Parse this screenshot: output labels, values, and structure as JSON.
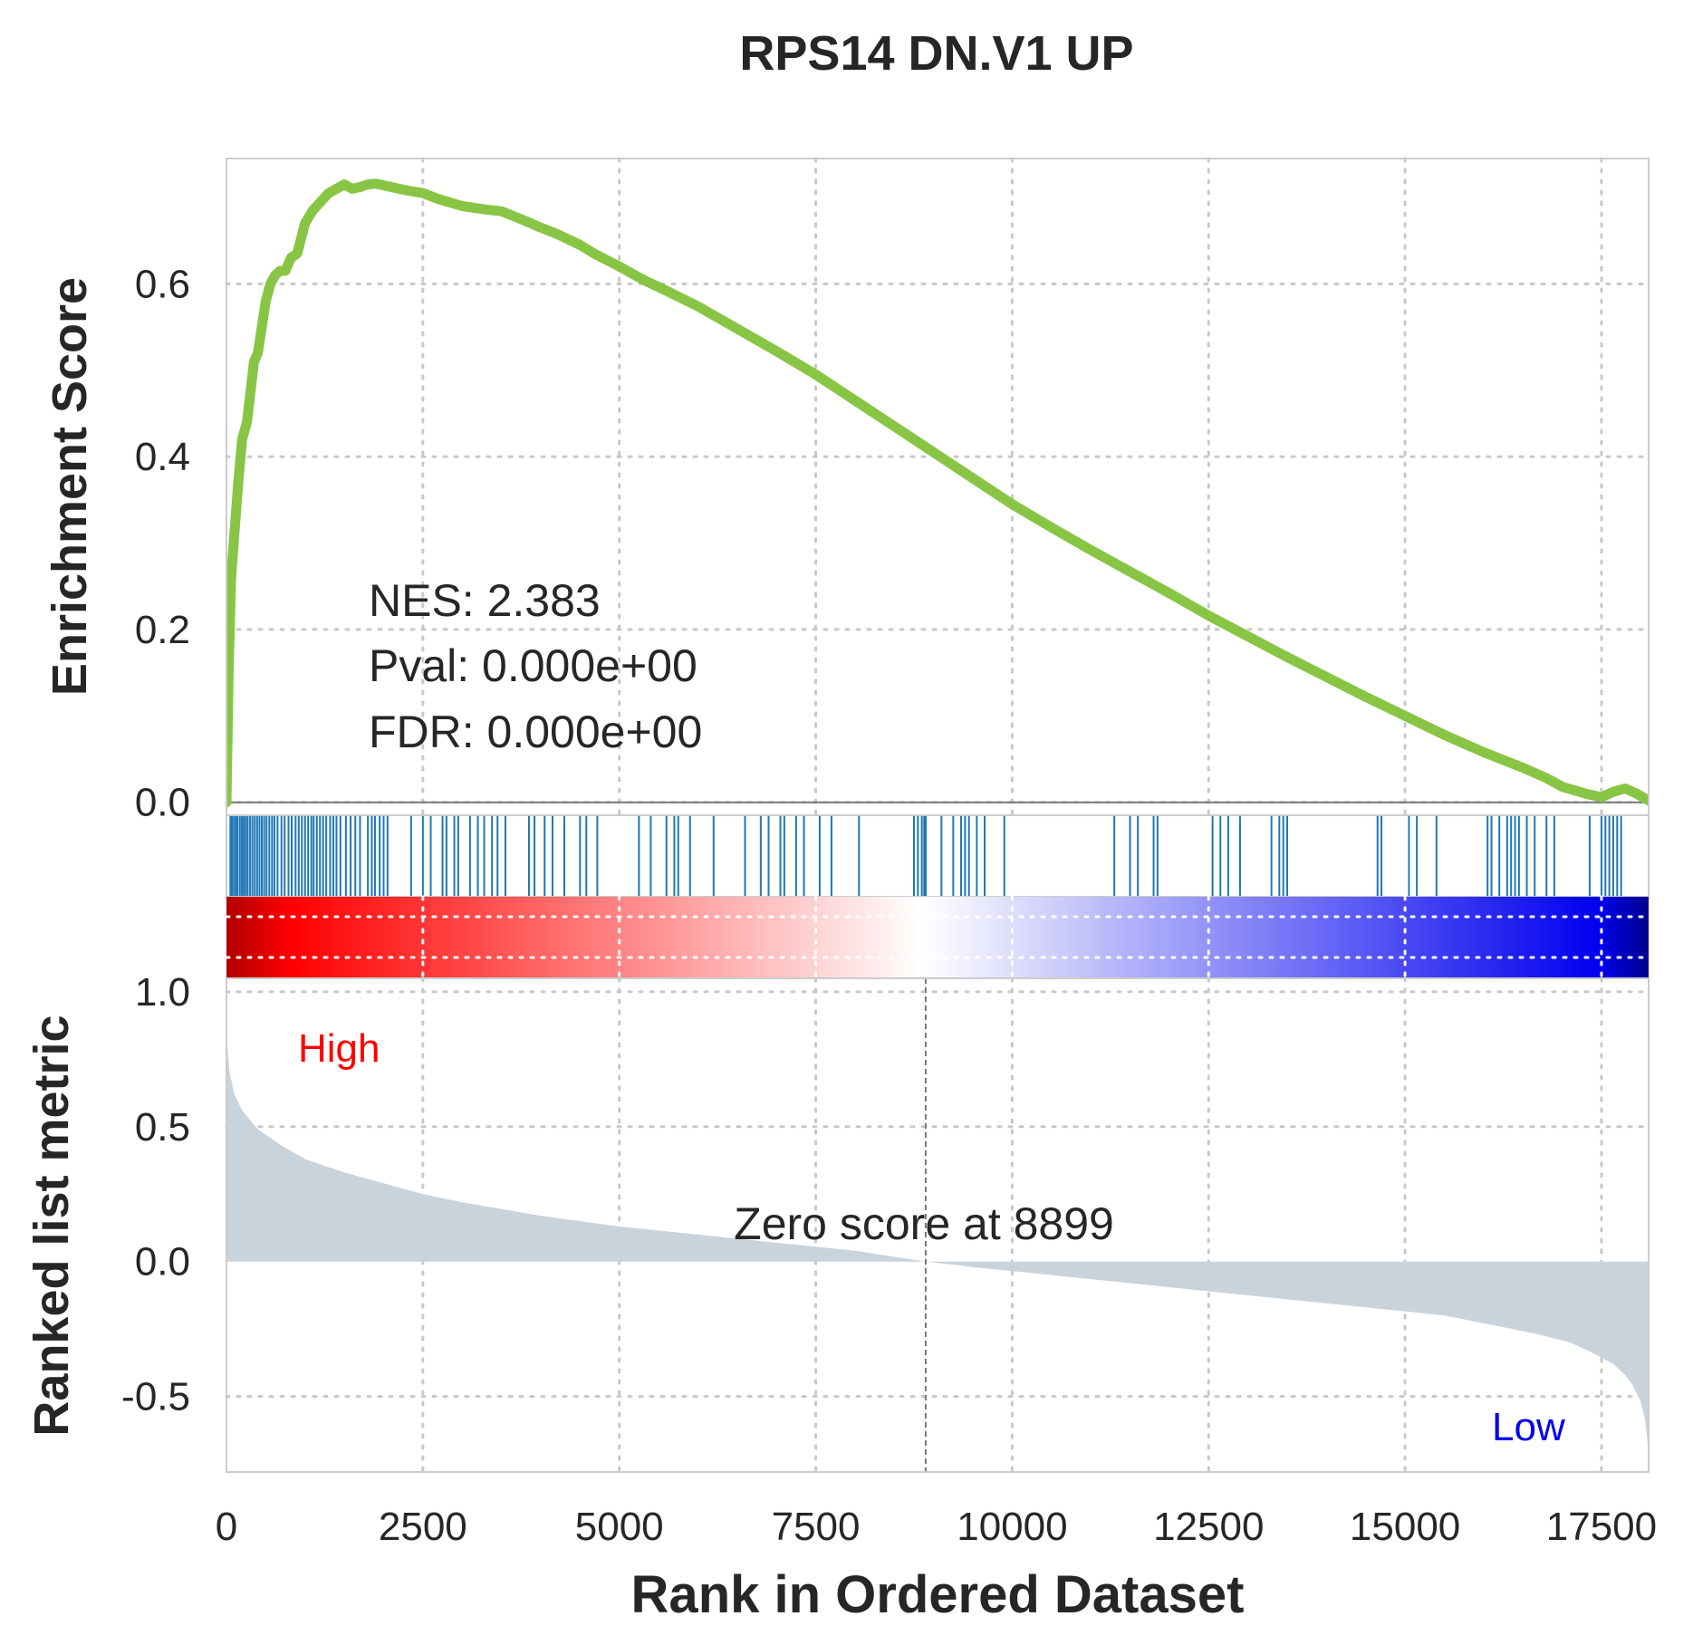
{
  "chart_data": {
    "type": "line",
    "title": "RPS14 DN.V1 UP",
    "xlabel": "Rank in Ordered Dataset",
    "xlim": [
      0,
      18100
    ],
    "xticks": [
      0,
      2500,
      5000,
      7500,
      10000,
      12500,
      15000,
      17500
    ],
    "grid": true,
    "enrichment": {
      "ylabel": "Enrichment Score",
      "ylim": [
        -0.015,
        0.745
      ],
      "yticks": [
        "0.0",
        "0.2",
        "0.4",
        "0.6"
      ],
      "yticks_values": [
        0.0,
        0.2,
        0.4,
        0.6
      ],
      "line_color": "#88c544",
      "series": {
        "x": [
          0,
          30,
          60,
          100,
          150,
          200,
          260,
          300,
          350,
          400,
          450,
          500,
          560,
          620,
          680,
          750,
          820,
          900,
          1000,
          1100,
          1200,
          1300,
          1400,
          1500,
          1600,
          1700,
          1800,
          1900,
          2000,
          2100,
          2200,
          2300,
          2500,
          2700,
          3000,
          3300,
          3500,
          3800,
          4000,
          4200,
          4500,
          4700,
          5000,
          5300,
          5600,
          6000,
          6500,
          7000,
          7500,
          8000,
          8500,
          9000,
          9500,
          10000,
          10500,
          11000,
          11500,
          12000,
          12500,
          13000,
          13500,
          14000,
          14500,
          15000,
          15500,
          16000,
          16500,
          16800,
          17000,
          17300,
          17500,
          17650,
          17800,
          17950,
          18100
        ],
        "y": [
          0.0,
          0.16,
          0.26,
          0.31,
          0.37,
          0.42,
          0.44,
          0.47,
          0.51,
          0.52,
          0.55,
          0.58,
          0.6,
          0.61,
          0.615,
          0.615,
          0.63,
          0.635,
          0.67,
          0.685,
          0.695,
          0.705,
          0.71,
          0.715,
          0.71,
          0.712,
          0.715,
          0.716,
          0.714,
          0.712,
          0.71,
          0.708,
          0.705,
          0.698,
          0.69,
          0.686,
          0.684,
          0.673,
          0.665,
          0.658,
          0.645,
          0.634,
          0.62,
          0.605,
          0.592,
          0.574,
          0.548,
          0.522,
          0.495,
          0.465,
          0.435,
          0.405,
          0.375,
          0.345,
          0.318,
          0.292,
          0.267,
          0.242,
          0.216,
          0.192,
          0.168,
          0.145,
          0.122,
          0.1,
          0.078,
          0.058,
          0.04,
          0.028,
          0.018,
          0.01,
          0.006,
          0.012,
          0.016,
          0.01,
          0.002
        ]
      },
      "annotations": [
        "NES: 2.383",
        "Pval: 0.000e+00",
        "FDR: 0.000e+00"
      ]
    },
    "hits": {
      "color": "#1f77b4",
      "positions": [
        50,
        70,
        95,
        120,
        140,
        170,
        195,
        220,
        245,
        270,
        300,
        330,
        360,
        390,
        420,
        450,
        480,
        510,
        545,
        580,
        610,
        650,
        700,
        740,
        790,
        830,
        880,
        920,
        960,
        1000,
        1040,
        1080,
        1110,
        1150,
        1190,
        1230,
        1270,
        1320,
        1360,
        1400,
        1450,
        1520,
        1580,
        1640,
        1700,
        1800,
        1850,
        1890,
        1950,
        2000,
        2050,
        2350,
        2500,
        2600,
        2750,
        2800,
        2900,
        2950,
        3100,
        3200,
        3280,
        3380,
        3450,
        3550,
        3850,
        3920,
        4050,
        4150,
        4300,
        4500,
        4580,
        4720,
        5250,
        5400,
        5600,
        5700,
        5750,
        5900,
        6200,
        6600,
        6800,
        6900,
        7050,
        7100,
        7250,
        7350,
        7550,
        7700,
        8050,
        8750,
        8800,
        8850,
        8880,
        8900,
        9100,
        9250,
        9350,
        9400,
        9450,
        9550,
        9650,
        9900,
        11300,
        11500,
        11600,
        11800,
        11850,
        12550,
        12650,
        12750,
        12900,
        13300,
        13400,
        13450,
        13500,
        14650,
        14700,
        15050,
        15150,
        15400,
        16050,
        16100,
        16200,
        16300,
        16350,
        16400,
        16450,
        16550,
        16650,
        16800,
        16900,
        17350,
        17500,
        17550,
        17600,
        17650,
        17700,
        17750
      ]
    },
    "ranked_metric": {
      "ylabel": "Ranked list metric",
      "ylim": [
        -0.78,
        1.05
      ],
      "yticks": [
        "1.0",
        "0.5",
        "0.0",
        "-0.5"
      ],
      "yticks_values": [
        1.0,
        0.5,
        0.0,
        -0.5
      ],
      "fill_color": "#c9d3dc",
      "series": {
        "x": [
          0,
          10,
          40,
          100,
          200,
          400,
          700,
          1000,
          1500,
          2000,
          2500,
          3000,
          4000,
          5000,
          6000,
          7000,
          8000,
          8899,
          9500,
          10500,
          11500,
          12500,
          13500,
          14500,
          15500,
          16200,
          16700,
          17100,
          17400,
          17650,
          17800,
          17900,
          18000,
          18050,
          18080,
          18100
        ],
        "y": [
          0.85,
          0.8,
          0.7,
          0.62,
          0.56,
          0.49,
          0.43,
          0.38,
          0.33,
          0.29,
          0.25,
          0.22,
          0.17,
          0.13,
          0.1,
          0.07,
          0.04,
          0.0,
          -0.02,
          -0.05,
          -0.08,
          -0.11,
          -0.14,
          -0.17,
          -0.2,
          -0.24,
          -0.27,
          -0.3,
          -0.34,
          -0.38,
          -0.42,
          -0.46,
          -0.52,
          -0.58,
          -0.65,
          -0.72
        ]
      },
      "zero_score_rank": 8899,
      "zero_label": "Zero score at 8899",
      "high_label": "High",
      "high_color": "#ff0000",
      "low_label": "Low",
      "low_color": "#0000ee"
    },
    "colorbar": {
      "colors": [
        "#b00000",
        "#ff0000",
        "#ffffff",
        "#0000ee",
        "#000090"
      ]
    }
  }
}
